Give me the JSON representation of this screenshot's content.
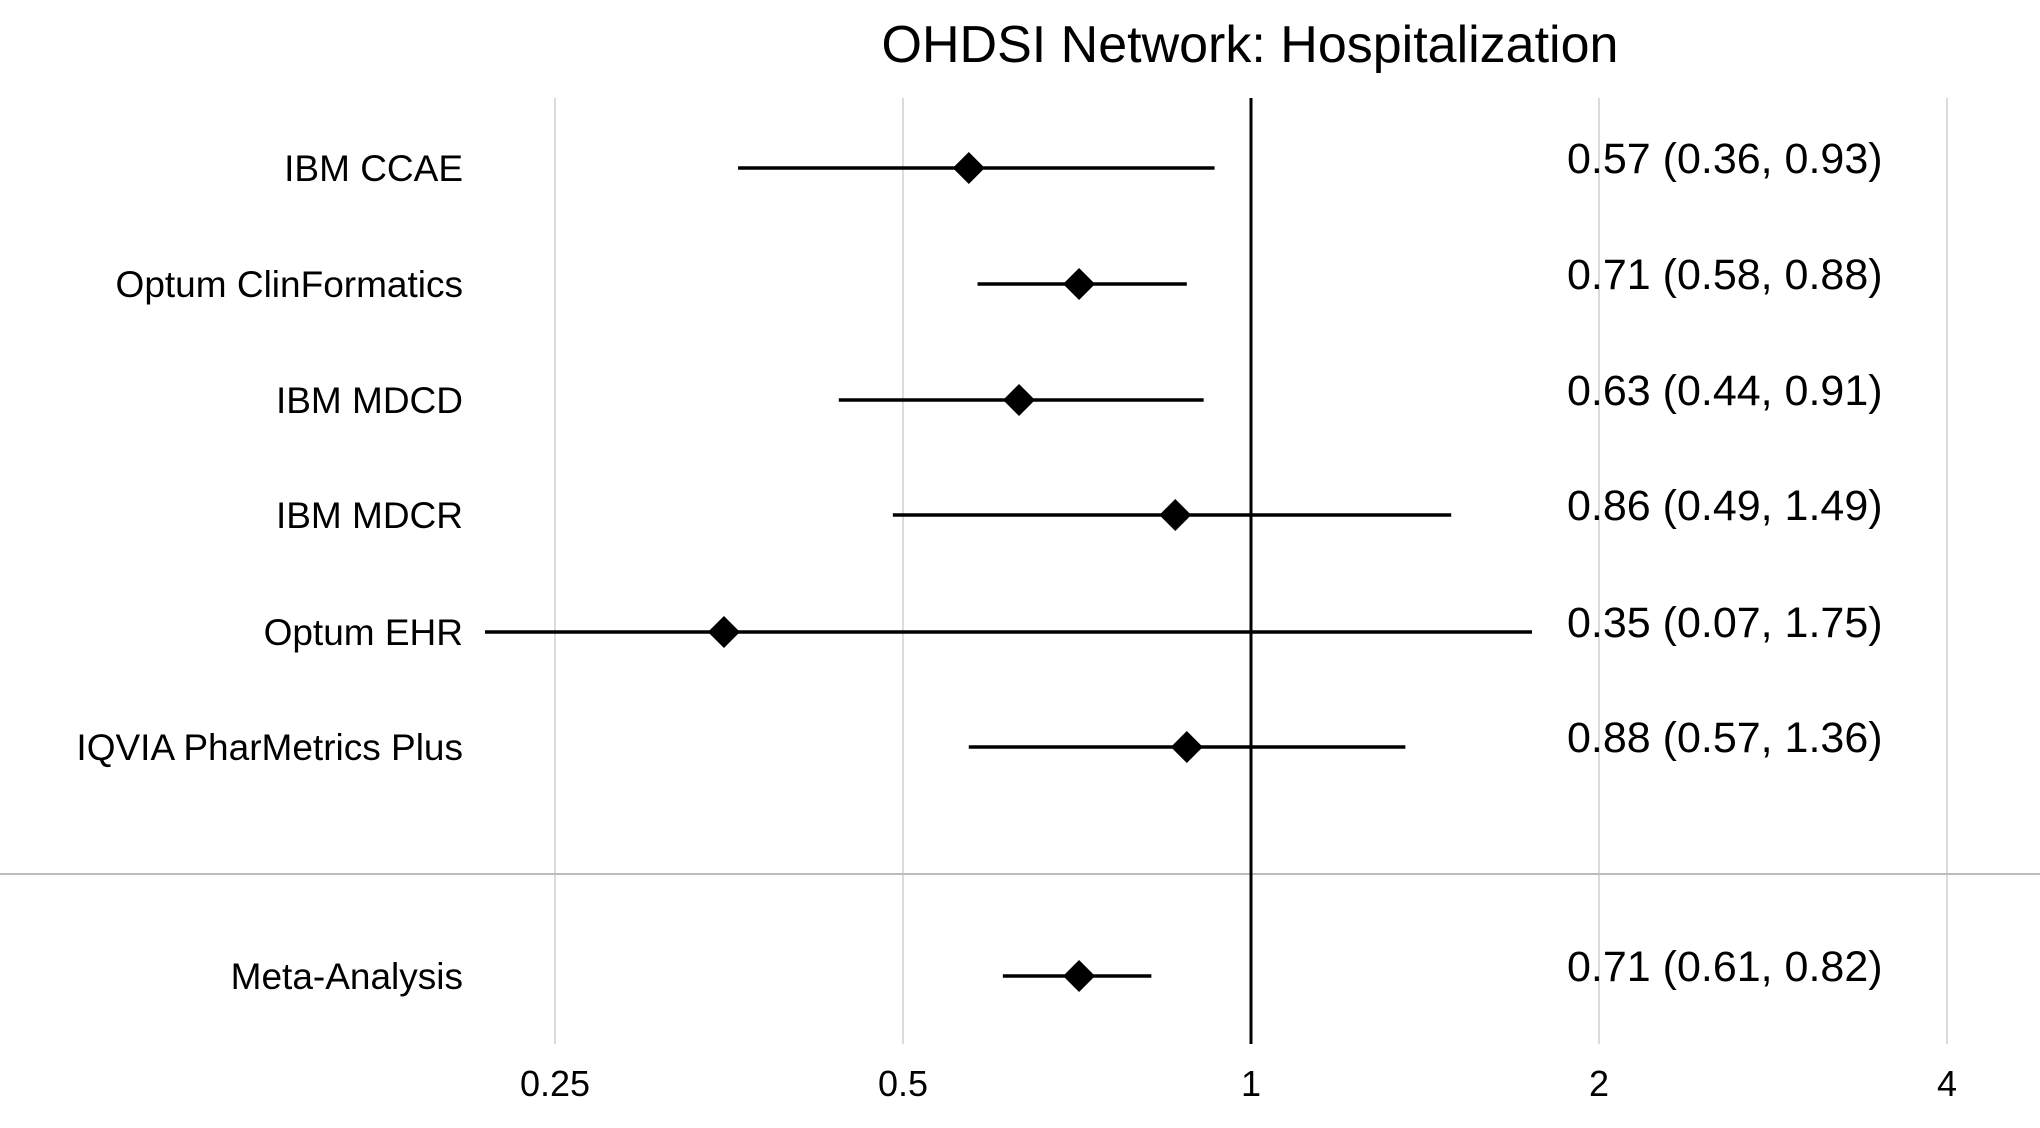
{
  "chart_data": {
    "type": "forest",
    "title": "OHDSI Network: Hospitalization",
    "x_scale": "log2",
    "xlim": [
      0.2,
      4.4
    ],
    "reference_line": 1,
    "x_ticks": [
      0.25,
      0.5,
      1,
      2,
      4
    ],
    "x_tick_labels": [
      "0.25",
      "0.5",
      "1",
      "2",
      "4"
    ],
    "grid": true,
    "rows": [
      {
        "label": "IBM CCAE",
        "estimate": 0.57,
        "lower": 0.36,
        "upper": 0.93,
        "text": "0.57 (0.36, 0.93)"
      },
      {
        "label": "Optum ClinFormatics",
        "estimate": 0.71,
        "lower": 0.58,
        "upper": 0.88,
        "text": "0.71 (0.58, 0.88)"
      },
      {
        "label": "IBM MDCD",
        "estimate": 0.63,
        "lower": 0.44,
        "upper": 0.91,
        "text": "0.63 (0.44, 0.91)"
      },
      {
        "label": "IBM MDCR",
        "estimate": 0.86,
        "lower": 0.49,
        "upper": 1.49,
        "text": "0.86 (0.49, 1.49)"
      },
      {
        "label": "Optum EHR",
        "estimate": 0.35,
        "lower": 0.07,
        "upper": 1.75,
        "text": "0.35 (0.07, 1.75)"
      },
      {
        "label": "IQVIA PharMetrics Plus",
        "estimate": 0.88,
        "lower": 0.57,
        "upper": 1.36,
        "text": "0.88 (0.57, 1.36)"
      }
    ],
    "summary": {
      "label": "Meta-Analysis",
      "estimate": 0.71,
      "lower": 0.61,
      "upper": 0.82,
      "text": "0.71 (0.61, 0.82)"
    }
  }
}
